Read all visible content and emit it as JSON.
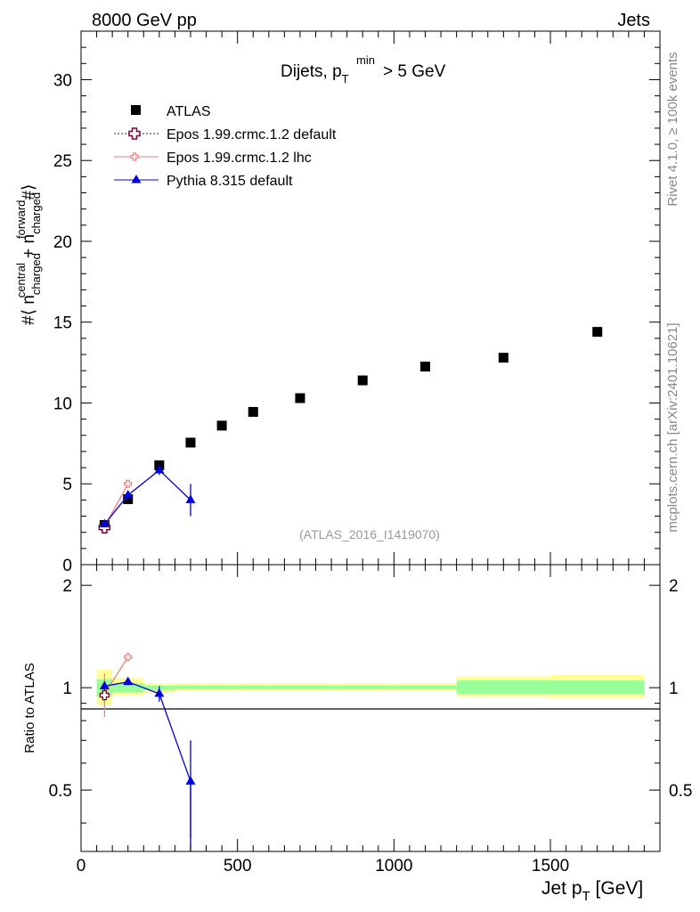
{
  "header": {
    "left": "8000 GeV pp",
    "right": "Jets"
  },
  "side_labels": {
    "rivet": "Rivet 4.1.0, ≥ 100k events",
    "mcplots": "mcplots.cern.ch [arXiv:2401.10621]"
  },
  "watermark": "(ATLAS_2016_I1419070)",
  "colors": {
    "atlas": "#000000",
    "epos_default": "#7f0033",
    "epos_lhc": "#f08080",
    "pythia": "#0000dd",
    "band_yellow": "#ffff99",
    "band_green": "#99ff99"
  },
  "chart_data": [
    {
      "type": "scatter",
      "panel": "main",
      "title_main": "Dijets, p",
      "title_sub": "T",
      "title_sup": "min",
      "title_tail": " > 5 GeV",
      "ylabel": "#⟨ n^central_charged + n^forward_charged #⟩",
      "ylabel_parts": {
        "prefix": "#⟨ n",
        "sup1": "central",
        "sub1": "charged",
        "mid": " + n",
        "sup2": "forward",
        "sub2": "charged",
        "suffix": "#⟩"
      },
      "xlim": [
        0,
        1850
      ],
      "ylim": [
        0,
        33
      ],
      "yticks": [
        0,
        5,
        10,
        15,
        20,
        25,
        30
      ],
      "ytick_labels": [
        "0",
        "5",
        "10",
        "15",
        "20",
        "25",
        "30"
      ],
      "legend": [
        {
          "label": "ATLAS",
          "marker": "square",
          "series": "atlas"
        },
        {
          "label": "Epos 1.99.crmc.1.2 default",
          "marker": "open-cross",
          "series": "epos_default"
        },
        {
          "label": "Epos 1.99.crmc.1.2 lhc",
          "marker": "open-cross-small",
          "series": "epos_lhc"
        },
        {
          "label": "Pythia 8.315 default",
          "marker": "triangle",
          "series": "pythia"
        }
      ],
      "series": [
        {
          "name": "ATLAS",
          "key": "atlas",
          "x": [
            75,
            150,
            250,
            350,
            450,
            550,
            700,
            900,
            1100,
            1350,
            1650
          ],
          "y": [
            2.45,
            4.05,
            6.15,
            7.55,
            8.6,
            9.45,
            10.3,
            11.4,
            12.25,
            12.8,
            14.4
          ]
        },
        {
          "name": "Epos 1.99.crmc.1.2 lhc",
          "key": "epos_lhc",
          "x": [
            75,
            150
          ],
          "y": [
            2.35,
            5.0
          ],
          "err": [
            0.45,
            0.15
          ]
        },
        {
          "name": "Epos 1.99.crmc.1.2 default",
          "key": "epos_default",
          "x": [
            75
          ],
          "y": [
            2.3
          ],
          "err": [
            0.0
          ]
        },
        {
          "name": "Pythia 8.315 default",
          "key": "pythia",
          "x": [
            75,
            150,
            250,
            350
          ],
          "y": [
            2.5,
            4.3,
            5.85,
            4.0
          ],
          "err": [
            0.15,
            0.1,
            0.3,
            1.0
          ]
        }
      ]
    },
    {
      "type": "scatter",
      "panel": "ratio",
      "ylabel": "Ratio to ATLAS",
      "xlabel_main": "Jet p",
      "xlabel_sub": "T",
      "xlabel_tail": " [GeV]",
      "xlim": [
        0,
        1850
      ],
      "ylim": [
        0.33,
        2.3
      ],
      "xticks": [
        0,
        500,
        1000,
        1500
      ],
      "xtick_labels": [
        "0",
        "500",
        "1000",
        "1500"
      ],
      "yticks": [
        0.5,
        1,
        2
      ],
      "ytick_labels": [
        "0.5",
        "1",
        "2"
      ],
      "bands": [
        {
          "x0": 50,
          "x1": 100,
          "yellow": [
            0.89,
            1.13
          ],
          "green": [
            0.94,
            1.06
          ]
        },
        {
          "x0": 100,
          "x1": 200,
          "yellow": [
            0.95,
            1.07
          ],
          "green": [
            0.97,
            1.03
          ]
        },
        {
          "x0": 200,
          "x1": 300,
          "yellow": [
            0.97,
            1.03
          ],
          "green": [
            0.985,
            1.015
          ]
        },
        {
          "x0": 300,
          "x1": 400,
          "yellow": [
            0.98,
            1.03
          ],
          "green": [
            0.99,
            1.015
          ]
        },
        {
          "x0": 400,
          "x1": 500,
          "yellow": [
            0.98,
            1.03
          ],
          "green": [
            0.99,
            1.015
          ]
        },
        {
          "x0": 500,
          "x1": 600,
          "yellow": [
            0.98,
            1.03
          ],
          "green": [
            0.99,
            1.015
          ]
        },
        {
          "x0": 600,
          "x1": 800,
          "yellow": [
            0.98,
            1.03
          ],
          "green": [
            0.99,
            1.015
          ]
        },
        {
          "x0": 800,
          "x1": 1000,
          "yellow": [
            0.98,
            1.03
          ],
          "green": [
            0.99,
            1.015
          ]
        },
        {
          "x0": 1000,
          "x1": 1200,
          "yellow": [
            0.98,
            1.03
          ],
          "green": [
            0.99,
            1.015
          ]
        },
        {
          "x0": 1200,
          "x1": 1500,
          "yellow": [
            0.94,
            1.08
          ],
          "green": [
            0.96,
            1.05
          ]
        },
        {
          "x0": 1500,
          "x1": 1800,
          "yellow": [
            0.93,
            1.09
          ],
          "green": [
            0.96,
            1.05
          ]
        }
      ],
      "series": [
        {
          "name": "Epos 1.99.crmc.1.2 lhc",
          "key": "epos_lhc",
          "x": [
            75,
            150
          ],
          "y": [
            0.96,
            1.23
          ],
          "err": [
            0.14,
            0.015
          ]
        },
        {
          "name": "Epos 1.99.crmc.1.2 default",
          "key": "epos_default",
          "x": [
            75
          ],
          "y": [
            0.95
          ],
          "err": [
            0.0
          ]
        },
        {
          "name": "Pythia 8.315 default",
          "key": "pythia",
          "x": [
            75,
            150,
            250,
            350
          ],
          "y": [
            1.01,
            1.04,
            0.96,
            0.53
          ],
          "err": [
            0.03,
            0.01,
            0.05,
            0.17
          ]
        }
      ]
    }
  ]
}
